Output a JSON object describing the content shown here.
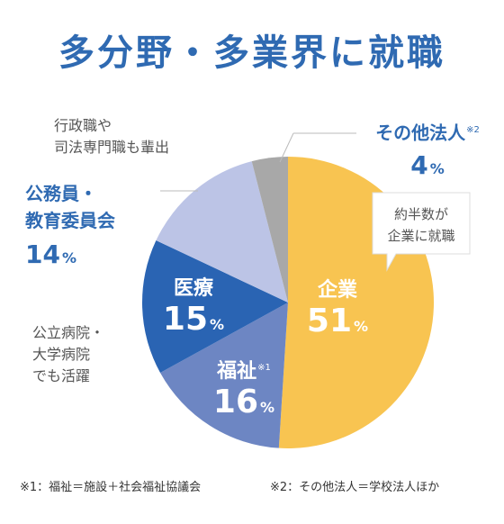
{
  "title": "多分野・多業界に就職",
  "chart_data": {
    "type": "pie",
    "slices": [
      {
        "name": "企業",
        "value": 51,
        "color": "#f8c451",
        "label": "企業",
        "pct": "51",
        "unit": "%"
      },
      {
        "name": "福祉",
        "value": 16,
        "color": "#6d86c3",
        "label": "福祉",
        "sup": "※1",
        "pct": "16",
        "unit": "%"
      },
      {
        "name": "医療",
        "value": 15,
        "color": "#2a64b3",
        "label": "医療",
        "pct": "15",
        "unit": "%"
      },
      {
        "name": "公務員・教育委員会",
        "value": 14,
        "color": "#bcc4e6",
        "label_line1": "公務員・",
        "label_line2": "教育委員会",
        "pct": "14",
        "unit": "%"
      },
      {
        "name": "その他法人",
        "value": 4,
        "color": "#a8a8a8",
        "label": "その他法人",
        "sup": "※2",
        "pct": "4",
        "unit": "%"
      }
    ]
  },
  "annotations": {
    "callout_line1": "約半数が",
    "callout_line2": "企業に就職",
    "civil_note_line1": "行政職や",
    "civil_note_line2": "司法専門職も輩出",
    "medical_note_line1": "公立病院・",
    "medical_note_line2": "大学病院",
    "medical_note_line3": "でも活躍"
  },
  "footnotes": {
    "note1": "※1：福祉＝施設＋社会福祉協議会",
    "note2": "※2：その他法人＝学校法人ほか"
  }
}
